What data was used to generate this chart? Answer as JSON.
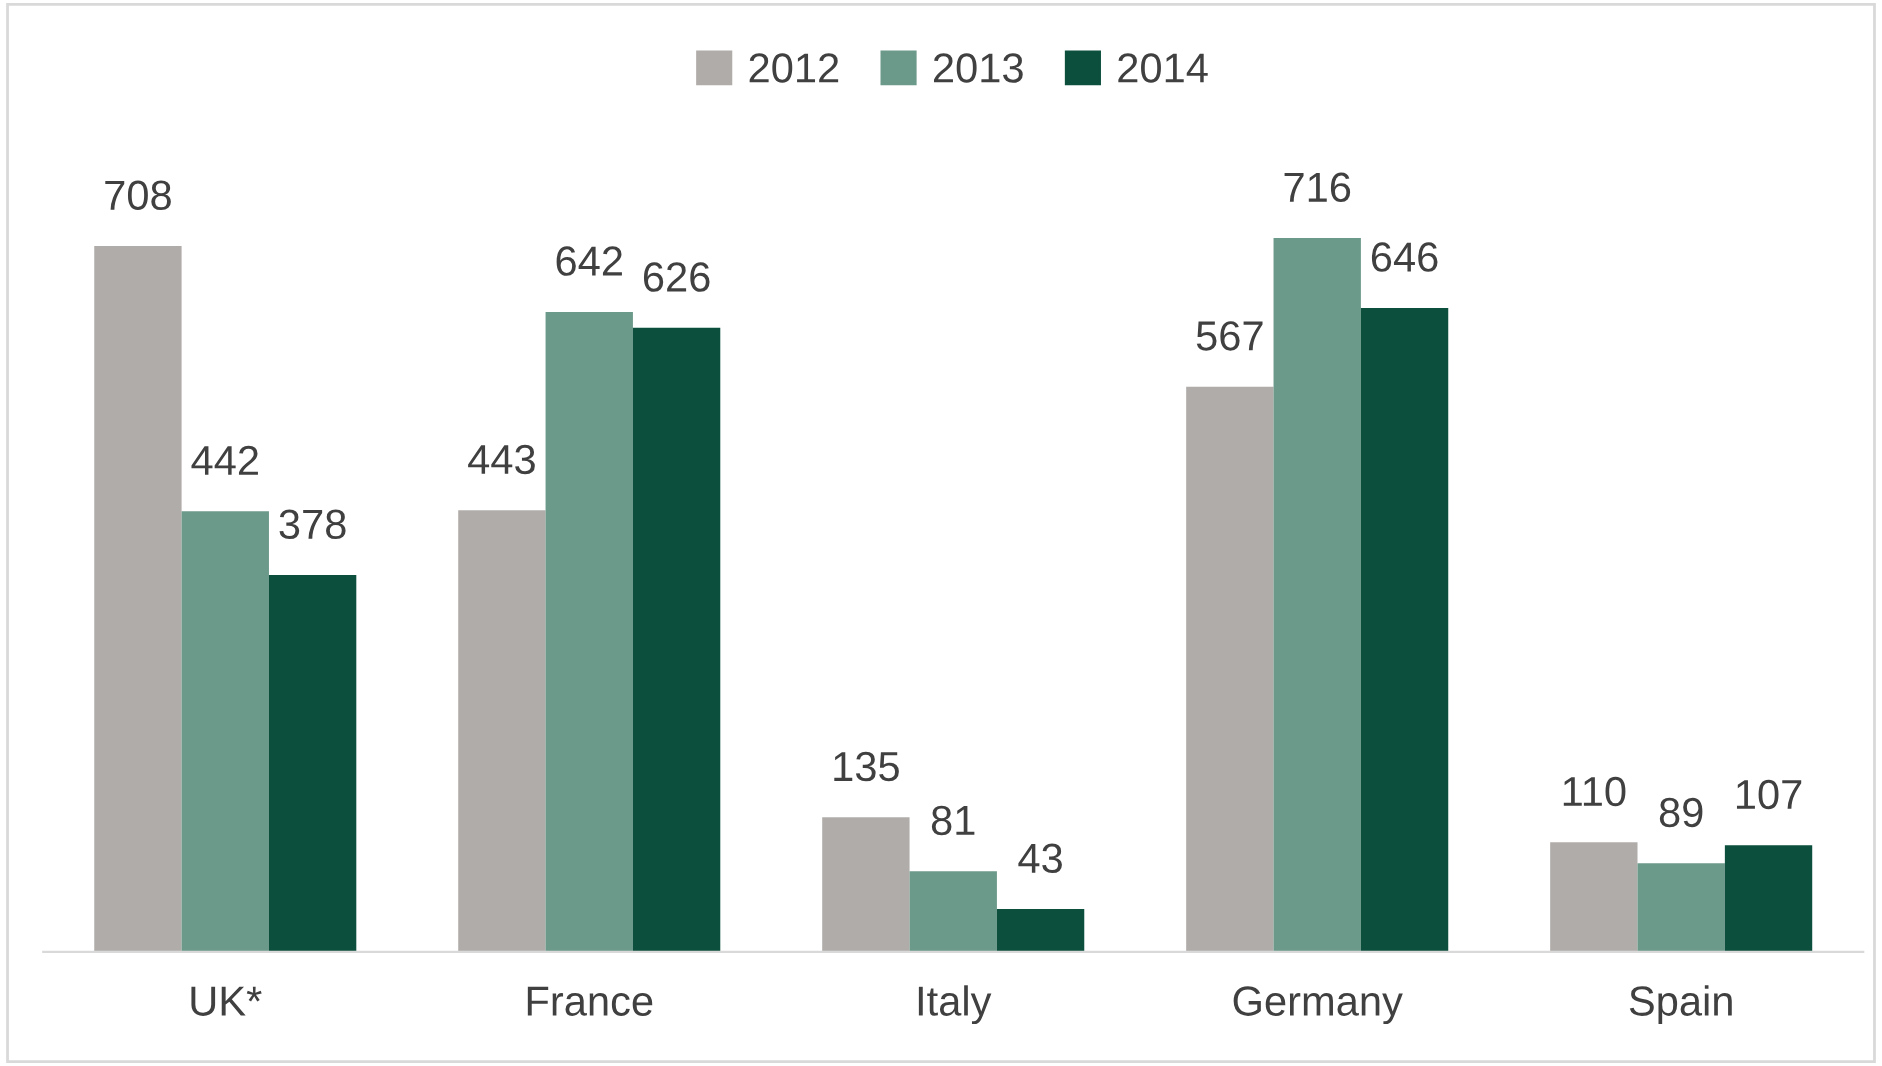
{
  "chart_data": {
    "type": "bar",
    "categories": [
      "UK*",
      "France",
      "Italy",
      "Germany",
      "Spain"
    ],
    "series": [
      {
        "name": "2012",
        "color": "#b0aca9",
        "values": [
          708,
          443,
          135,
          567,
          110
        ]
      },
      {
        "name": "2013",
        "color": "#6b998a",
        "values": [
          442,
          642,
          81,
          716,
          89
        ]
      },
      {
        "name": "2014",
        "color": "#0b4f3c",
        "values": [
          378,
          626,
          43,
          646,
          107
        ]
      }
    ],
    "data_labels": true,
    "legend": "top",
    "grid": false
  }
}
